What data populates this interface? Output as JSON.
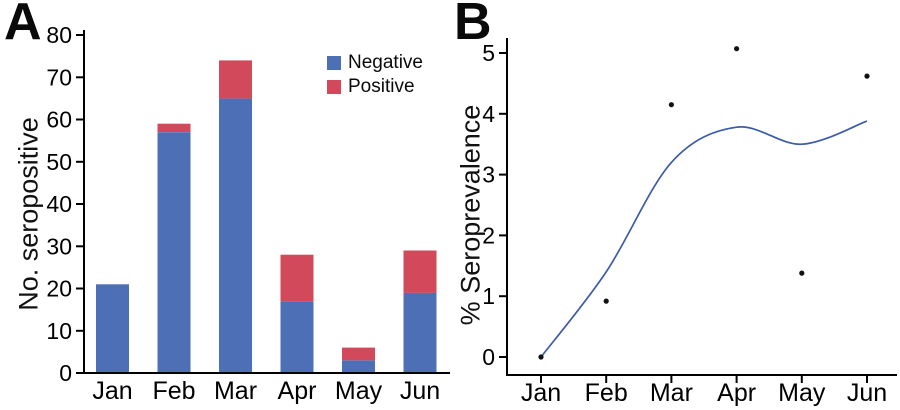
{
  "figure": {
    "background": "#ffffff"
  },
  "panels": {
    "a": {
      "letter": "A"
    },
    "b": {
      "letter": "B"
    }
  },
  "colors": {
    "negative_blue": "#4c6fb6",
    "positive_red": "#d3495c",
    "trend_line_blue": "#3c5ba8",
    "scatter_point": "#111111",
    "axis": "#000000"
  },
  "chart_data": [
    {
      "type": "bar",
      "panel": "A",
      "stacked": true,
      "title": "",
      "xlabel": "",
      "ylabel": "No. seropositive",
      "categories": [
        "Jan",
        "Feb",
        "Mar",
        "Apr",
        "May",
        "Jun"
      ],
      "series": [
        {
          "name": "Negative",
          "color": "#4c6fb6",
          "values": [
            21,
            57,
            65,
            17,
            3,
            19
          ]
        },
        {
          "name": "Positive",
          "color": "#d3495c",
          "values": [
            0,
            2,
            9,
            11,
            3,
            10
          ]
        }
      ],
      "stack_totals": [
        21,
        59,
        74,
        28,
        6,
        29
      ],
      "ylim": [
        0,
        80
      ],
      "ytick_step": 10,
      "ytick_labels": [
        "0",
        "10",
        "20",
        "30",
        "40",
        "50",
        "60",
        "70",
        "80"
      ],
      "grid": false,
      "legend_position": "top-right"
    },
    {
      "type": "scatter",
      "panel": "B",
      "title": "",
      "xlabel": "",
      "ylabel": "% Seroprevalence",
      "categories": [
        "Jan",
        "Feb",
        "Mar",
        "Apr",
        "May",
        "Jun"
      ],
      "scatter_values": [
        0,
        0.92,
        4.15,
        5.07,
        1.38,
        4.62
      ],
      "trend_curve_values": [
        0,
        1.4,
        3.2,
        3.78,
        3.5,
        3.88
      ],
      "ylim": [
        0,
        5
      ],
      "ytick_step": 1,
      "ytick_labels": [
        "0",
        "1",
        "2",
        "3",
        "4",
        "5"
      ],
      "grid": false,
      "legend_position": "none"
    }
  ]
}
